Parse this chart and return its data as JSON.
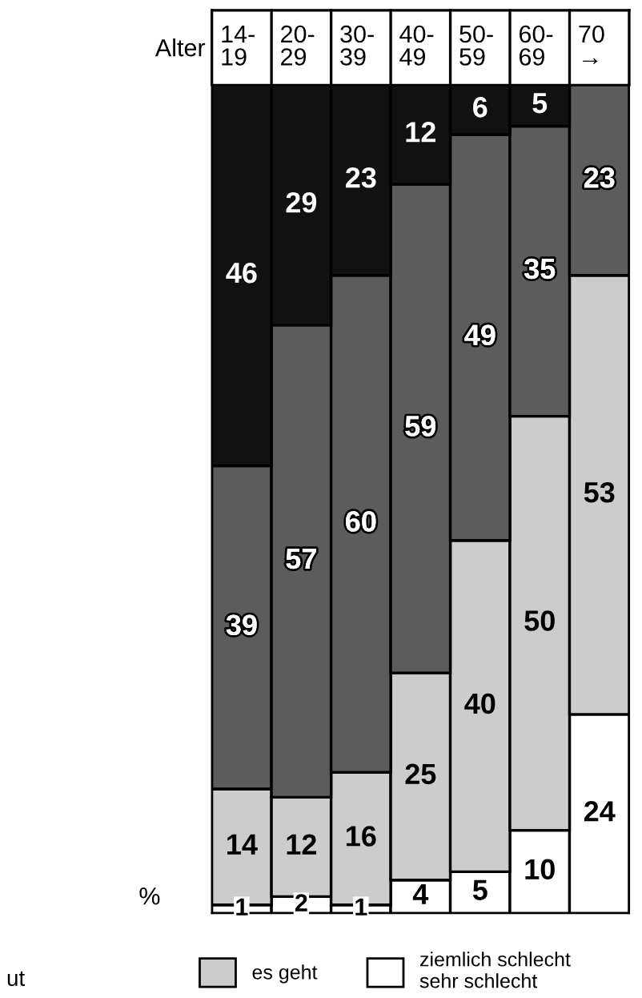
{
  "chart_data": {
    "type": "bar",
    "stacked": true,
    "xlabel": "Alter",
    "ylabel": "%",
    "categories": [
      "14-\n19",
      "20-\n29",
      "30-\n39",
      "40-\n49",
      "50-\n59",
      "60-\n69",
      "70\n→"
    ],
    "series": [
      {
        "name": "ziemlich schlecht\nsehr schlecht",
        "color": "#ffffff",
        "values": [
          1,
          2,
          1,
          4,
          5,
          10,
          24
        ]
      },
      {
        "name": "es geht",
        "color": "#cccccc",
        "values": [
          14,
          12,
          16,
          25,
          40,
          50,
          53
        ]
      },
      {
        "color": "#5c5c5c",
        "values": [
          39,
          57,
          60,
          59,
          49,
          35,
          23
        ]
      },
      {
        "color": "#111111",
        "values": [
          46,
          29,
          23,
          12,
          6,
          5,
          null
        ]
      }
    ],
    "data_labels": true,
    "legend": "bottom",
    "tick_labels": "x",
    "annotations": [
      "ut"
    ]
  }
}
